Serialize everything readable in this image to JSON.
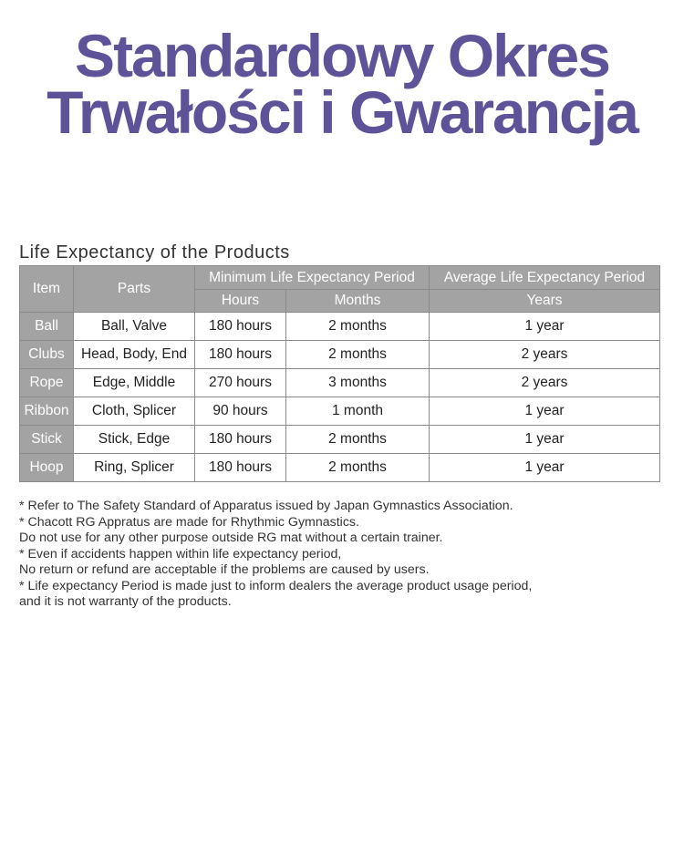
{
  "title": {
    "line1": "Standardowy Okres",
    "line2": "Trwałości i Gwarancja"
  },
  "subtitle": "Life Expectancy of the Products",
  "table": {
    "headers": {
      "item": "Item",
      "parts": "Parts",
      "min_period": "Minimum Life Expectancy Period",
      "avg_period": "Average Life Expectancy Period",
      "hours": "Hours",
      "months": "Months",
      "years": "Years"
    },
    "rows": [
      {
        "item": "Ball",
        "parts": "Ball, Valve",
        "hours": "180 hours",
        "months": "2 months",
        "years": "1 year"
      },
      {
        "item": "Clubs",
        "parts": "Head, Body, End",
        "hours": "180 hours",
        "months": "2 months",
        "years": "2 years"
      },
      {
        "item": "Rope",
        "parts": "Edge, Middle",
        "hours": "270 hours",
        "months": "3 months",
        "years": "2 years"
      },
      {
        "item": "Ribbon",
        "parts": "Cloth, Splicer",
        "hours": "90 hours",
        "months": "1 month",
        "years": "1 year"
      },
      {
        "item": "Stick",
        "parts": "Stick, Edge",
        "hours": "180 hours",
        "months": "2 months",
        "years": "1 year"
      },
      {
        "item": "Hoop",
        "parts": "Ring, Splicer",
        "hours": "180 hours",
        "months": "2 months",
        "years": "1 year"
      }
    ]
  },
  "notes": [
    "* Refer to The Safety Standard of Apparatus issued by Japan Gymnastics Association.",
    "* Chacott RG Appratus are made for Rhythmic Gymnastics.",
    "Do not use for any other purpose outside RG mat without a certain trainer.",
    "* Even if accidents happen within life expectancy period,",
    "No return or refund are acceptable if the problems are caused by users.",
    "* Life expectancy Period is made just to inform dealers the average product usage period,",
    "and it is not warranty of the products."
  ]
}
